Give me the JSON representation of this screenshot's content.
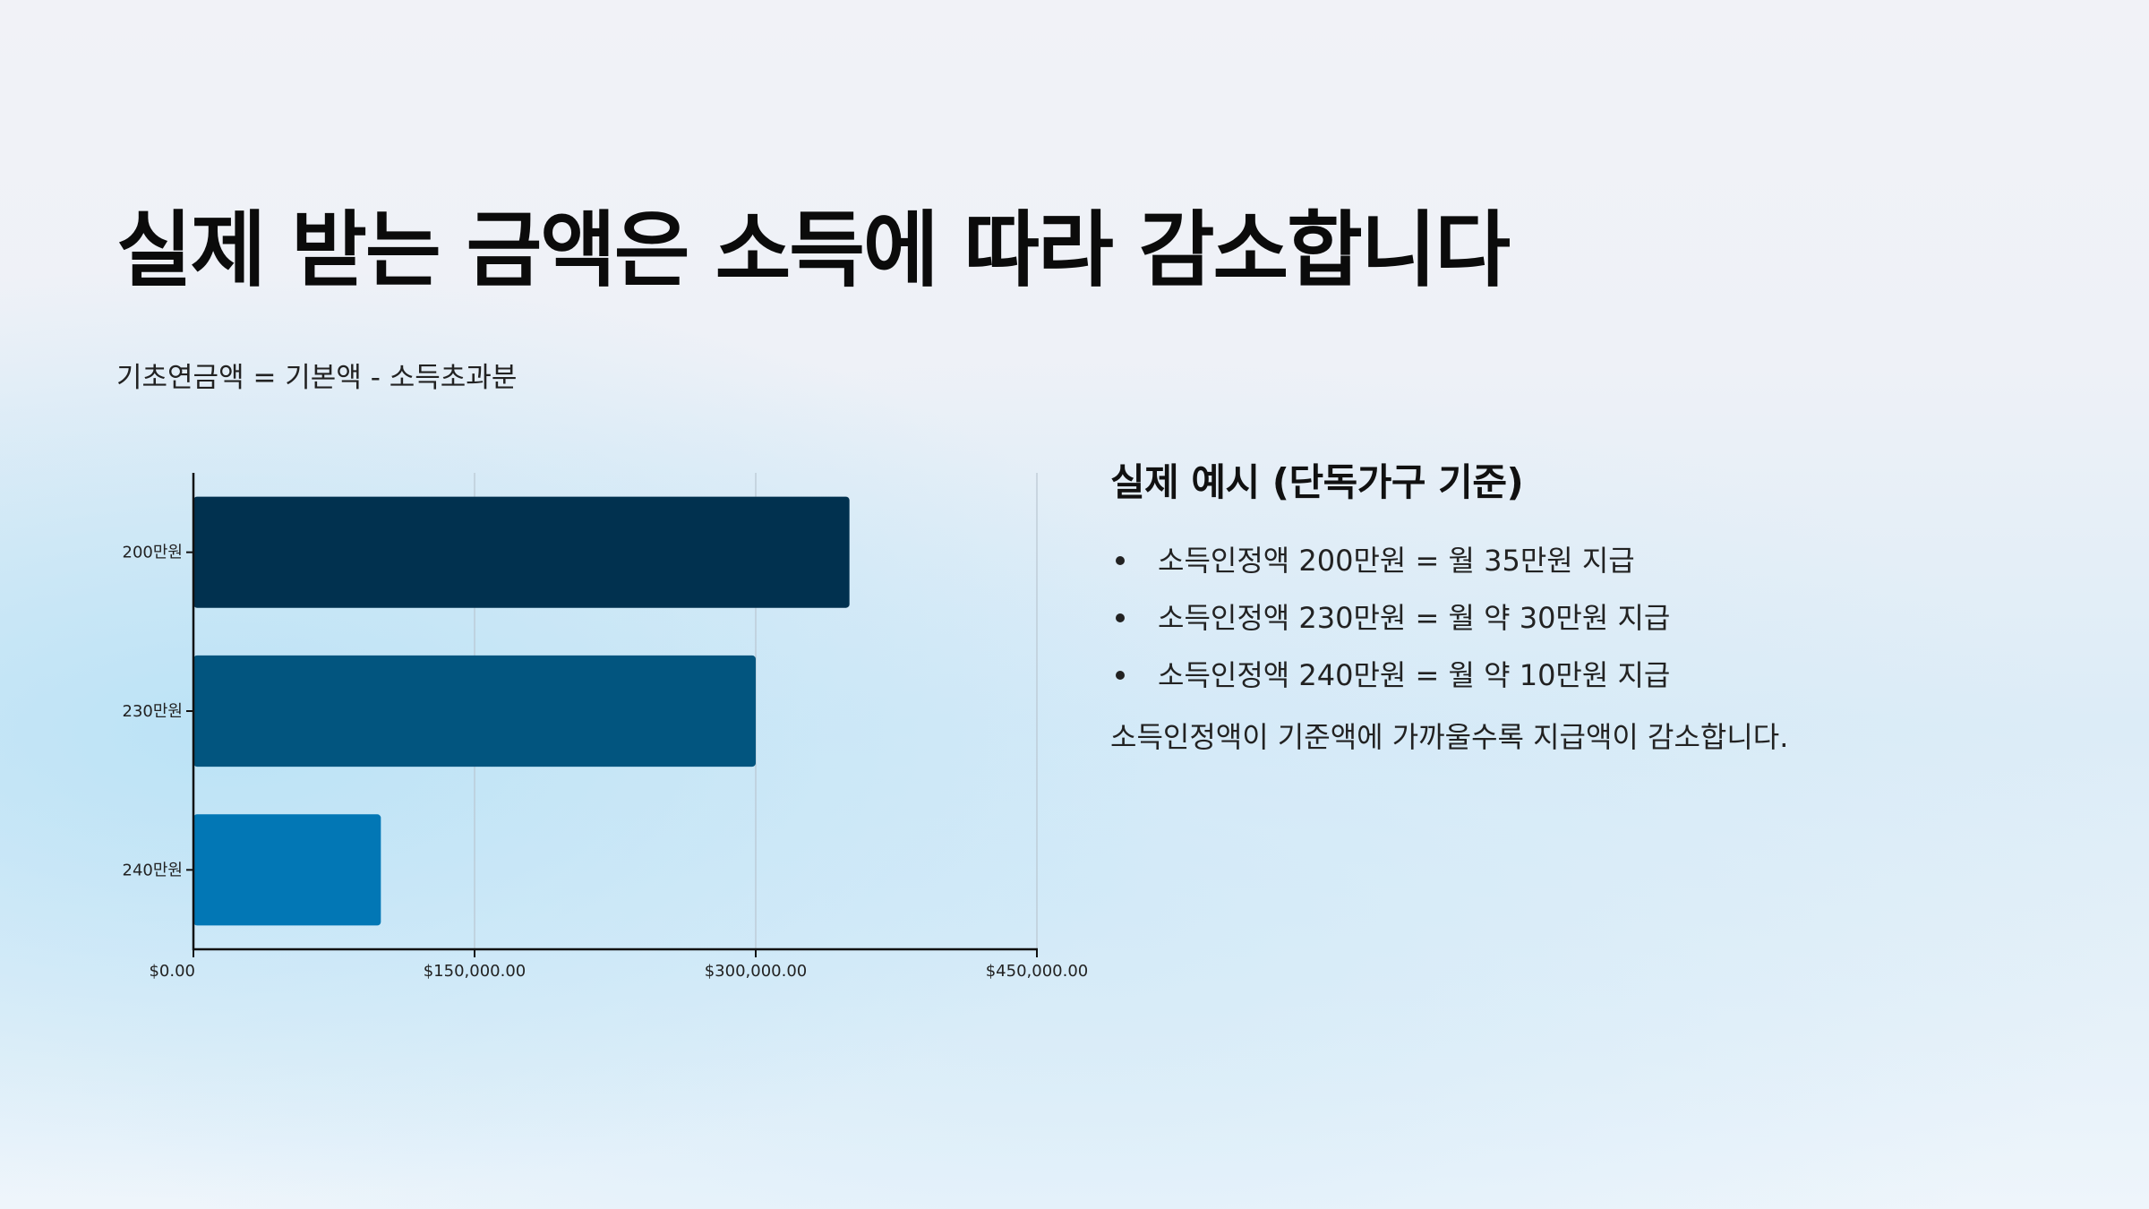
{
  "slide": {
    "title": "실제 받는 금액은 소득에 따라 감소합니다",
    "formula": "기초연금액 = 기본액 - 소득초과분"
  },
  "side": {
    "title": "실제 예시 (단독가구 기준)",
    "bullets": [
      "소득인정액 200만원 = 월 35만원 지급",
      "소득인정액 230만원 = 월 약 30만원 지급",
      "소득인정액 240만원 = 월 약 10만원 지급"
    ],
    "note": "소득인정액이 기준액에 가까울수록 지급액이 감소합니다."
  },
  "chart_data": {
    "type": "bar",
    "orientation": "horizontal",
    "categories": [
      "200만원",
      "230만원",
      "240만원"
    ],
    "values": [
      350000,
      300000,
      100000
    ],
    "xlim": [
      0,
      450000
    ],
    "xticks": [
      0,
      150000,
      300000,
      450000
    ],
    "xtick_labels": [
      "$0.00",
      "$150,000.00",
      "$300,000.00",
      "$450,000.00"
    ],
    "bar_colors": [
      "#01314f",
      "#02557f",
      "#0277b5"
    ],
    "grid": "vertical",
    "legend": "none"
  }
}
